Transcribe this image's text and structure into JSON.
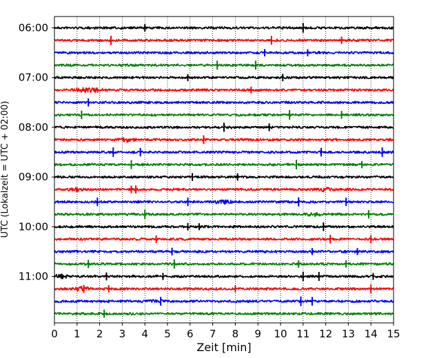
{
  "chart_data": {
    "type": "line",
    "title": "",
    "xlabel": "Zeit  [min]",
    "ylabel": "UTC (Lokalzeit = UTC + 02:00)",
    "xlim": [
      0,
      15
    ],
    "x_ticks": [
      "0",
      "1",
      "2",
      "3",
      "4",
      "5",
      "6",
      "7",
      "8",
      "9",
      "10",
      "11",
      "12",
      "13",
      "14",
      "15"
    ],
    "y_tick_labels": [
      "06:00",
      "07:00",
      "08:00",
      "09:00",
      "10:00",
      "11:00"
    ],
    "grid": "vertical dotted lines at each minute",
    "trace_interval_minutes": 15,
    "start_time": "06:00",
    "color_cycle": [
      "#000000",
      "#ff0000",
      "#0000ff",
      "#008000"
    ],
    "traces": [
      {
        "time": "06:00",
        "color": "#000000",
        "spikes": [
          4.0,
          11.0
        ],
        "bursts": []
      },
      {
        "time": "06:15",
        "color": "#ff0000",
        "spikes": [
          2.5,
          9.6,
          12.7
        ],
        "bursts": []
      },
      {
        "time": "06:30",
        "color": "#0000ff",
        "spikes": [
          9.3,
          11.2
        ],
        "bursts": []
      },
      {
        "time": "06:45",
        "color": "#008000",
        "spikes": [
          7.2,
          8.9
        ],
        "bursts": []
      },
      {
        "time": "07:00",
        "color": "#000000",
        "spikes": [
          5.9,
          10.1
        ],
        "bursts": []
      },
      {
        "time": "07:15",
        "color": "#ff0000",
        "spikes": [
          8.7
        ],
        "bursts": [
          1.2,
          1.8
        ]
      },
      {
        "time": "07:30",
        "color": "#0000ff",
        "spikes": [
          1.5
        ],
        "bursts": []
      },
      {
        "time": "07:45",
        "color": "#008000",
        "spikes": [
          1.2,
          10.4,
          12.7
        ],
        "bursts": []
      },
      {
        "time": "08:00",
        "color": "#000000",
        "spikes": [
          7.5,
          9.5
        ],
        "bursts": []
      },
      {
        "time": "08:15",
        "color": "#ff0000",
        "spikes": [
          6.6
        ],
        "bursts": [
          3.2
        ]
      },
      {
        "time": "08:30",
        "color": "#0000ff",
        "spikes": [
          2.6,
          3.8,
          11.8,
          14.5
        ],
        "bursts": []
      },
      {
        "time": "08:45",
        "color": "#008000",
        "spikes": [
          3.4,
          10.7,
          13.6
        ],
        "bursts": []
      },
      {
        "time": "09:00",
        "color": "#000000",
        "spikes": [
          6.1,
          8.1
        ],
        "bursts": []
      },
      {
        "time": "09:15",
        "color": "#ff0000",
        "spikes": [
          3.4,
          3.6
        ],
        "bursts": [
          1.0,
          12.0
        ]
      },
      {
        "time": "09:30",
        "color": "#0000ff",
        "spikes": [
          1.9,
          5.9,
          10.8,
          12.9
        ],
        "bursts": [
          7.5
        ]
      },
      {
        "time": "09:45",
        "color": "#008000",
        "spikes": [
          4.0,
          13.9
        ],
        "bursts": [
          11.5
        ]
      },
      {
        "time": "10:00",
        "color": "#000000",
        "spikes": [
          5.9,
          6.4,
          11.9
        ],
        "bursts": []
      },
      {
        "time": "10:15",
        "color": "#ff0000",
        "spikes": [
          4.5,
          12.2,
          14.0
        ],
        "bursts": []
      },
      {
        "time": "10:30",
        "color": "#0000ff",
        "spikes": [
          5.2,
          11.4,
          13.4
        ],
        "bursts": []
      },
      {
        "time": "10:45",
        "color": "#008000",
        "spikes": [
          1.5,
          5.3,
          10.8,
          12.9
        ],
        "bursts": []
      },
      {
        "time": "11:00",
        "color": "#000000",
        "spikes": [
          2.3,
          4.8,
          11.0,
          11.7,
          14.1
        ],
        "bursts": [
          0.3
        ]
      },
      {
        "time": "11:15",
        "color": "#ff0000",
        "spikes": [
          1.3,
          2.4,
          8.0,
          14.0
        ],
        "bursts": [
          1.2
        ]
      },
      {
        "time": "11:30",
        "color": "#0000ff",
        "spikes": [
          4.7,
          10.9,
          11.4
        ],
        "bursts": [
          4.5
        ]
      },
      {
        "time": "11:45",
        "color": "#008000",
        "spikes": [
          2.2
        ],
        "bursts": []
      }
    ]
  }
}
